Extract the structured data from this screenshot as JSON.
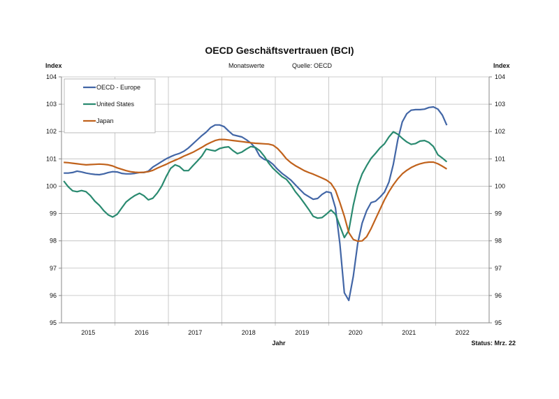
{
  "chart_data": {
    "type": "line",
    "title": "OECD Geschäftsvertrauen (BCI)",
    "subtitle": "Monatswerte",
    "source": "Quelle: OECD",
    "ylabel_left": "Index",
    "ylabel_right": "Index",
    "xlabel": "Jahr",
    "status": "Status: Mrz. 22",
    "ylim": [
      95,
      104
    ],
    "yticks": [
      "95",
      "96",
      "97",
      "98",
      "99",
      "100",
      "101",
      "102",
      "103",
      "104"
    ],
    "xticks": [
      "2015",
      "2016",
      "2017",
      "2018",
      "2019",
      "2020",
      "2021",
      "2022"
    ],
    "grid": true,
    "legend_position": "top-left",
    "x": [
      "2015-01",
      "2015-02",
      "2015-03",
      "2015-04",
      "2015-05",
      "2015-06",
      "2015-07",
      "2015-08",
      "2015-09",
      "2015-10",
      "2015-11",
      "2015-12",
      "2016-01",
      "2016-02",
      "2016-03",
      "2016-04",
      "2016-05",
      "2016-06",
      "2016-07",
      "2016-08",
      "2016-09",
      "2016-10",
      "2016-11",
      "2016-12",
      "2017-01",
      "2017-02",
      "2017-03",
      "2017-04",
      "2017-05",
      "2017-06",
      "2017-07",
      "2017-08",
      "2017-09",
      "2017-10",
      "2017-11",
      "2017-12",
      "2018-01",
      "2018-02",
      "2018-03",
      "2018-04",
      "2018-05",
      "2018-06",
      "2018-07",
      "2018-08",
      "2018-09",
      "2018-10",
      "2018-11",
      "2018-12",
      "2019-01",
      "2019-02",
      "2019-03",
      "2019-04",
      "2019-05",
      "2019-06",
      "2019-07",
      "2019-08",
      "2019-09",
      "2019-10",
      "2019-11",
      "2019-12",
      "2020-01",
      "2020-02",
      "2020-03",
      "2020-04",
      "2020-05",
      "2020-06",
      "2020-07",
      "2020-08",
      "2020-09",
      "2020-10",
      "2020-11",
      "2020-12",
      "2021-01",
      "2021-02",
      "2021-03",
      "2021-04",
      "2021-05",
      "2021-06",
      "2021-07",
      "2021-08",
      "2021-09",
      "2021-10",
      "2021-11",
      "2021-12",
      "2022-01",
      "2022-02",
      "2022-03"
    ],
    "series": [
      {
        "name": "OECD - Europe",
        "color": "#4266a6",
        "values": [
          100.48,
          100.48,
          100.5,
          100.55,
          100.52,
          100.48,
          100.45,
          100.43,
          100.42,
          100.45,
          100.5,
          100.53,
          100.52,
          100.47,
          100.45,
          100.45,
          100.47,
          100.5,
          100.5,
          100.55,
          100.7,
          100.8,
          100.9,
          101.0,
          101.08,
          101.15,
          101.2,
          101.28,
          101.4,
          101.55,
          101.7,
          101.85,
          101.98,
          102.15,
          102.24,
          102.24,
          102.18,
          102.02,
          101.88,
          101.84,
          101.8,
          101.7,
          101.58,
          101.4,
          101.1,
          100.98,
          100.93,
          100.8,
          100.62,
          100.47,
          100.35,
          100.22,
          100.05,
          99.88,
          99.72,
          99.62,
          99.52,
          99.55,
          99.7,
          99.8,
          99.76,
          99.2,
          97.9,
          96.1,
          95.82,
          96.7,
          97.9,
          98.65,
          99.1,
          99.4,
          99.45,
          99.6,
          99.78,
          100.15,
          100.8,
          101.7,
          102.35,
          102.65,
          102.78,
          102.8,
          102.8,
          102.82,
          102.88,
          102.9,
          102.82,
          102.6,
          102.23
        ]
      },
      {
        "name": "United States",
        "color": "#2a8a70",
        "values": [
          100.19,
          99.98,
          99.83,
          99.8,
          99.84,
          99.8,
          99.65,
          99.45,
          99.3,
          99.1,
          98.95,
          98.87,
          98.97,
          99.2,
          99.42,
          99.55,
          99.66,
          99.74,
          99.65,
          99.5,
          99.56,
          99.75,
          100.0,
          100.35,
          100.65,
          100.78,
          100.72,
          100.57,
          100.57,
          100.75,
          100.92,
          101.1,
          101.36,
          101.32,
          101.29,
          101.38,
          101.42,
          101.44,
          101.3,
          101.19,
          101.25,
          101.36,
          101.45,
          101.42,
          101.3,
          101.1,
          100.85,
          100.65,
          100.5,
          100.35,
          100.25,
          100.05,
          99.8,
          99.6,
          99.38,
          99.15,
          98.9,
          98.83,
          98.85,
          98.98,
          99.13,
          98.97,
          98.55,
          98.12,
          98.38,
          99.3,
          100.0,
          100.45,
          100.75,
          101.02,
          101.2,
          101.4,
          101.55,
          101.8,
          101.99,
          101.9,
          101.75,
          101.62,
          101.53,
          101.56,
          101.65,
          101.67,
          101.6,
          101.45,
          101.15,
          101.03,
          100.89
        ]
      },
      {
        "name": "Japan",
        "color": "#c0621c",
        "values": [
          100.87,
          100.86,
          100.84,
          100.82,
          100.8,
          100.78,
          100.79,
          100.8,
          100.81,
          100.8,
          100.78,
          100.74,
          100.67,
          100.62,
          100.57,
          100.53,
          100.51,
          100.5,
          100.51,
          100.53,
          100.58,
          100.66,
          100.73,
          100.8,
          100.88,
          100.95,
          101.02,
          101.1,
          101.17,
          101.24,
          101.33,
          101.42,
          101.52,
          101.6,
          101.67,
          101.71,
          101.71,
          101.69,
          101.67,
          101.65,
          101.63,
          101.61,
          101.59,
          101.57,
          101.56,
          101.55,
          101.54,
          101.5,
          101.38,
          101.2,
          101.0,
          100.86,
          100.75,
          100.66,
          100.57,
          100.5,
          100.44,
          100.37,
          100.3,
          100.22,
          100.1,
          99.85,
          99.4,
          98.9,
          98.3,
          98.05,
          97.99,
          98.0,
          98.15,
          98.45,
          98.8,
          99.15,
          99.5,
          99.8,
          100.05,
          100.27,
          100.45,
          100.58,
          100.68,
          100.76,
          100.82,
          100.86,
          100.88,
          100.88,
          100.82,
          100.73,
          100.63
        ]
      }
    ]
  }
}
